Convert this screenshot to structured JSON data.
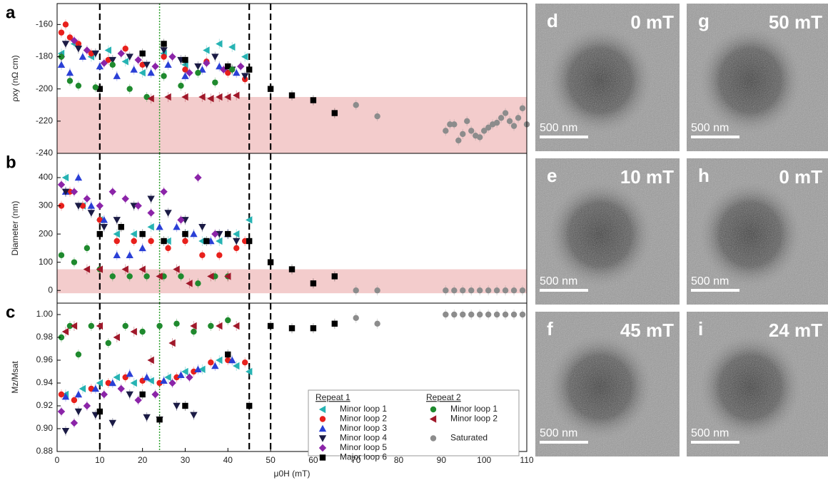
{
  "chart_data": [
    {
      "type": "scatter",
      "panel": "a",
      "ylabel": "ρxy (nΩ cm)",
      "xlim": [
        0,
        110
      ],
      "ylim": [
        -240,
        -147
      ],
      "yticks": [
        -240,
        -220,
        -200,
        -180,
        -160
      ],
      "bands": [
        {
          "from": -240,
          "to": -205,
          "color": "#f3cccc"
        }
      ],
      "vlines": [
        {
          "value": 10,
          "color": "#000000",
          "style": "dashed"
        },
        {
          "value": 24,
          "color": "#2ca02c",
          "style": "dotted"
        },
        {
          "value": 45,
          "color": "#000000",
          "style": "dashed"
        },
        {
          "value": 50,
          "color": "#000000",
          "style": "dashed"
        }
      ],
      "series": [
        {
          "color": "#26b3b3",
          "marker": "triangle-left",
          "x": [
            1,
            4,
            8,
            12,
            16,
            20,
            25,
            30,
            35,
            38,
            41,
            44
          ],
          "values": [
            -178,
            -172,
            -180,
            -176,
            -183,
            -190,
            -178,
            -185,
            -176,
            -172,
            -174,
            -180
          ]
        },
        {
          "color": "#e8201c",
          "marker": "circle",
          "x": [
            1,
            2,
            3,
            5,
            8,
            12,
            16,
            20,
            25,
            30,
            35,
            40,
            44
          ],
          "values": [
            -165,
            -160,
            -168,
            -172,
            -178,
            -182,
            -175,
            -185,
            -180,
            -188,
            -183,
            -190,
            -194
          ]
        },
        {
          "color": "#2a3fd6",
          "marker": "triangle-up",
          "x": [
            1,
            3,
            6,
            10,
            14,
            18,
            22,
            26,
            30,
            34,
            38,
            42
          ],
          "values": [
            -185,
            -190,
            -180,
            -186,
            -192,
            -188,
            -190,
            -185,
            -192,
            -188,
            -186,
            -190
          ]
        },
        {
          "color": "#1b1b45",
          "marker": "triangle-down",
          "x": [
            2,
            5,
            9,
            13,
            17,
            21,
            25,
            29,
            33,
            37,
            41,
            44
          ],
          "values": [
            -172,
            -175,
            -178,
            -182,
            -180,
            -185,
            -176,
            -182,
            -186,
            -180,
            -188,
            -192
          ]
        },
        {
          "color": "#8b24a8",
          "marker": "diamond",
          "x": [
            1,
            4,
            7,
            11,
            15,
            19,
            23,
            27,
            31,
            35,
            39,
            43
          ],
          "values": [
            -180,
            -170,
            -176,
            -184,
            -178,
            -182,
            -186,
            -180,
            -190,
            -184,
            -188,
            -186
          ]
        },
        {
          "color": "#000000",
          "marker": "square",
          "x": [
            10,
            20,
            25,
            30,
            40,
            45,
            50,
            55,
            60,
            65
          ],
          "values": [
            -200,
            -178,
            -172,
            -182,
            -186,
            -188,
            -200,
            -204,
            -207,
            -215
          ]
        },
        {
          "color": "#1f8a2e",
          "marker": "circle",
          "x": [
            1,
            3,
            5,
            9,
            13,
            17,
            21,
            25,
            29,
            33,
            37,
            41
          ],
          "values": [
            -180,
            -195,
            -198,
            -199,
            -185,
            -200,
            -205,
            -192,
            -198,
            -190,
            -196,
            -188
          ]
        },
        {
          "color": "#a0182a",
          "marker": "triangle-left",
          "x": [
            22,
            26,
            30,
            34,
            36,
            38,
            40,
            42
          ],
          "values": [
            -206,
            -205,
            -205,
            -205,
            -206,
            -205,
            -205,
            -204
          ]
        },
        {
          "color": "#8c8c8c",
          "marker": "circle",
          "x": [
            70,
            75,
            91,
            92,
            93,
            94,
            95,
            96,
            97,
            98,
            99,
            100,
            101,
            102,
            103,
            104,
            105,
            106,
            107,
            108,
            109,
            110
          ],
          "values": [
            -210,
            -217,
            -226,
            -222,
            -222,
            -232,
            -228,
            -220,
            -226,
            -229,
            -230,
            -226,
            -224,
            -222,
            -221,
            -218,
            -215,
            -220,
            -223,
            -218,
            -212,
            -222
          ]
        }
      ]
    },
    {
      "type": "scatter",
      "panel": "b",
      "ylabel": "Diameter (nm)",
      "xlim": [
        0,
        110
      ],
      "ylim": [
        -45,
        486
      ],
      "yticks": [
        0,
        100,
        200,
        300,
        400
      ],
      "bands": [
        {
          "from": -10,
          "to": 75,
          "color": "#f3cccc"
        }
      ],
      "vlines": [
        {
          "value": 10,
          "color": "#000000",
          "style": "dashed"
        },
        {
          "value": 24,
          "color": "#2ca02c",
          "style": "dotted"
        },
        {
          "value": 45,
          "color": "#000000",
          "style": "dashed"
        },
        {
          "value": 50,
          "color": "#000000",
          "style": "dashed"
        }
      ],
      "series": [
        {
          "color": "#26b3b3",
          "marker": "triangle-left",
          "x": [
            2,
            6,
            10,
            14,
            18,
            22,
            26,
            30,
            34,
            38,
            42,
            45
          ],
          "values": [
            400,
            300,
            250,
            200,
            200,
            225,
            175,
            200,
            175,
            175,
            200,
            250
          ]
        },
        {
          "color": "#e8201c",
          "marker": "circle",
          "x": [
            1,
            3,
            6,
            10,
            14,
            18,
            22,
            26,
            30,
            34,
            38,
            42,
            44
          ],
          "values": [
            300,
            350,
            300,
            250,
            175,
            175,
            175,
            150,
            175,
            125,
            125,
            150,
            175
          ]
        },
        {
          "color": "#2a3fd6",
          "marker": "triangle-up",
          "x": [
            2,
            5,
            8,
            11,
            14,
            17,
            20,
            24,
            28,
            32,
            36,
            40
          ],
          "values": [
            350,
            400,
            300,
            250,
            125,
            125,
            150,
            225,
            225,
            200,
            175,
            200
          ]
        },
        {
          "color": "#1b1b45",
          "marker": "triangle-down",
          "x": [
            2,
            5,
            8,
            11,
            14,
            18,
            22,
            26,
            30,
            34,
            38,
            42
          ],
          "values": [
            350,
            300,
            275,
            225,
            250,
            300,
            325,
            275,
            250,
            225,
            200,
            175
          ]
        },
        {
          "color": "#8b24a8",
          "marker": "diamond",
          "x": [
            1,
            4,
            7,
            10,
            13,
            16,
            19,
            22,
            25,
            29,
            33,
            37
          ],
          "values": [
            375,
            350,
            325,
            300,
            350,
            325,
            300,
            275,
            350,
            250,
            400,
            200
          ]
        },
        {
          "color": "#000000",
          "marker": "square",
          "x": [
            10,
            15,
            20,
            25,
            30,
            35,
            40,
            45,
            50,
            55,
            60,
            65
          ],
          "values": [
            200,
            225,
            200,
            175,
            200,
            175,
            200,
            175,
            100,
            75,
            25,
            50
          ]
        },
        {
          "color": "#1f8a2e",
          "marker": "circle",
          "x": [
            1,
            4,
            7,
            10,
            13,
            17,
            21,
            25,
            29,
            33,
            37,
            40
          ],
          "values": [
            125,
            100,
            150,
            75,
            50,
            50,
            50,
            50,
            50,
            25,
            50,
            50
          ]
        },
        {
          "color": "#a0182a",
          "marker": "triangle-left",
          "x": [
            7,
            10,
            16,
            20,
            24,
            28,
            31,
            36,
            40
          ],
          "values": [
            75,
            75,
            75,
            75,
            50,
            75,
            25,
            50,
            50
          ]
        },
        {
          "color": "#8c8c8c",
          "marker": "circle",
          "x": [
            70,
            75,
            91,
            93,
            95,
            97,
            99,
            101,
            103,
            105,
            107,
            109
          ],
          "values": [
            0,
            0,
            0,
            0,
            0,
            0,
            0,
            0,
            0,
            0,
            0,
            0
          ]
        }
      ]
    },
    {
      "type": "scatter",
      "panel": "c",
      "ylabel": "Mz/Msat",
      "xlabel": "μ0H (mT)",
      "xlim": [
        0,
        110
      ],
      "ylim": [
        0.88,
        1.01
      ],
      "xticks": [
        0,
        10,
        20,
        30,
        40,
        50,
        60,
        70,
        80,
        90,
        100,
        110
      ],
      "yticks": [
        0.88,
        {
          "value": 0.9,
          "label": "0.90"
        },
        0.92,
        0.94,
        0.96,
        0.98,
        {
          "value": 1,
          "label": "1.00"
        }
      ],
      "vlines": [
        {
          "value": 10,
          "color": "#000000",
          "style": "dashed"
        },
        {
          "value": 24,
          "color": "#2ca02c",
          "style": "dotted"
        },
        {
          "value": 45,
          "color": "#000000",
          "style": "dashed"
        },
        {
          "value": 50,
          "color": "#000000",
          "style": "dashed"
        }
      ],
      "legend": "lower right",
      "legend_titles": [
        "Repeat 1",
        "Repeat 2"
      ],
      "series": [
        {
          "name": "Minor loop 1",
          "group": 0,
          "color": "#26b3b3",
          "marker": "triangle-left",
          "x": [
            2,
            6,
            10,
            14,
            18,
            22,
            26,
            30,
            34,
            38,
            42,
            45
          ],
          "values": [
            0.93,
            0.935,
            0.94,
            0.945,
            0.94,
            0.942,
            0.945,
            0.95,
            0.952,
            0.96,
            0.955,
            0.95
          ]
        },
        {
          "name": "Minor loop 2",
          "group": 0,
          "color": "#e8201c",
          "marker": "circle",
          "x": [
            1,
            4,
            8,
            12,
            16,
            20,
            24,
            28,
            32,
            36,
            40,
            44
          ],
          "values": [
            0.93,
            0.925,
            0.935,
            0.94,
            0.945,
            0.942,
            0.94,
            0.945,
            0.95,
            0.958,
            0.96,
            0.958
          ]
        },
        {
          "name": "Minor loop 3",
          "group": 0,
          "color": "#2a3fd6",
          "marker": "triangle-up",
          "x": [
            2,
            5,
            9,
            13,
            17,
            21,
            25,
            29,
            33,
            37,
            41
          ],
          "values": [
            0.928,
            0.93,
            0.935,
            0.94,
            0.948,
            0.945,
            0.942,
            0.947,
            0.952,
            0.955,
            0.96
          ]
        },
        {
          "name": "Minor loop 4",
          "group": 0,
          "color": "#1b1b45",
          "marker": "triangle-down",
          "x": [
            2,
            5,
            9,
            13,
            17,
            21,
            24,
            28,
            32
          ],
          "values": [
            0.898,
            0.915,
            0.912,
            0.905,
            0.93,
            0.91,
            0.908,
            0.92,
            0.912
          ]
        },
        {
          "name": "Minor loop 5",
          "group": 0,
          "color": "#8b24a8",
          "marker": "diamond",
          "x": [
            1,
            4,
            7,
            11,
            15,
            19,
            23,
            27,
            31
          ],
          "values": [
            0.915,
            0.905,
            0.92,
            0.93,
            0.935,
            0.925,
            0.93,
            0.94,
            0.945
          ]
        },
        {
          "name": "Major loop 6",
          "group": 0,
          "color": "#000000",
          "marker": "square",
          "x": [
            10,
            20,
            24,
            30,
            40,
            45,
            50,
            55,
            60,
            65
          ],
          "values": [
            0.915,
            0.93,
            0.908,
            0.92,
            0.965,
            0.92,
            0.99,
            0.988,
            0.988,
            0.992
          ]
        },
        {
          "name": "Minor loop 1",
          "group": 1,
          "color": "#1f8a2e",
          "marker": "circle",
          "x": [
            1,
            3,
            5,
            8,
            12,
            16,
            20,
            24,
            28,
            32,
            36,
            40
          ],
          "values": [
            0.98,
            0.99,
            0.965,
            0.99,
            0.975,
            0.99,
            0.985,
            0.99,
            0.992,
            0.985,
            0.99,
            0.995
          ]
        },
        {
          "name": "Minor loop 2",
          "group": 1,
          "color": "#a0182a",
          "marker": "triangle-left",
          "x": [
            2,
            4,
            10,
            14,
            18,
            22,
            27,
            32,
            38,
            42
          ],
          "values": [
            0.985,
            0.99,
            0.99,
            0.98,
            0.985,
            0.96,
            0.975,
            0.99,
            0.99,
            0.99
          ]
        },
        {
          "name": "Saturated",
          "group": 1,
          "color": "#8c8c8c",
          "marker": "circle",
          "x": [
            70,
            75,
            91,
            93,
            95,
            97,
            99,
            101,
            103,
            105,
            107,
            109
          ],
          "values": [
            0.997,
            0.992,
            1,
            1,
            1,
            1,
            1,
            1,
            1,
            1,
            1,
            1
          ]
        }
      ]
    }
  ],
  "images": [
    {
      "label": "d",
      "field": "0 mT",
      "scale": "500 nm"
    },
    {
      "label": "e",
      "field": "10 mT",
      "scale": "500 nm"
    },
    {
      "label": "f",
      "field": "45 mT",
      "scale": "500 nm"
    },
    {
      "label": "g",
      "field": "50 mT",
      "scale": "500 nm"
    },
    {
      "label": "h",
      "field": "0 mT",
      "scale": "500 nm"
    },
    {
      "label": "i",
      "field": "24 mT",
      "scale": "500 nm"
    }
  ]
}
